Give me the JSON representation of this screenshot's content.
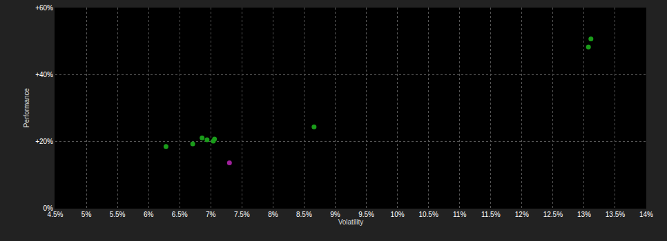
{
  "chart_data": {
    "type": "scatter",
    "x_label": "Volatility",
    "y_label": "Performance",
    "x": [
      6.28,
      6.71,
      6.86,
      6.94,
      7.04,
      7.06,
      8.66,
      7.3,
      13.07,
      13.11
    ],
    "values": [
      18.4,
      19.2,
      21.0,
      20.4,
      20.0,
      20.6,
      24.3,
      13.5,
      48.2,
      50.6
    ],
    "colors": [
      "#1a9c1a",
      "#1a9c1a",
      "#1a9c1a",
      "#1a9c1a",
      "#1a9c1a",
      "#1a9c1a",
      "#1a9c1a",
      "#a0209c",
      "#1a9c1a",
      "#1a9c1a"
    ],
    "xlim": [
      4.5,
      14
    ],
    "xticks": [
      {
        "value": 4.5,
        "label": "4.5%"
      },
      {
        "value": 5,
        "label": "5%"
      },
      {
        "value": 5.5,
        "label": "5.5%"
      },
      {
        "value": 6,
        "label": "6%"
      },
      {
        "value": 6.5,
        "label": "6.5%"
      },
      {
        "value": 7,
        "label": "7%"
      },
      {
        "value": 7.5,
        "label": "7.5%"
      },
      {
        "value": 8,
        "label": "8%"
      },
      {
        "value": 8.5,
        "label": "8.5%"
      },
      {
        "value": 9,
        "label": "9%"
      },
      {
        "value": 9.5,
        "label": "9.5%"
      },
      {
        "value": 10,
        "label": "10%"
      },
      {
        "value": 10.5,
        "label": "10.5%"
      },
      {
        "value": 11,
        "label": "11%"
      },
      {
        "value": 11.5,
        "label": "11.5%"
      },
      {
        "value": 12,
        "label": "12%"
      },
      {
        "value": 12.5,
        "label": "12.5%"
      },
      {
        "value": 13,
        "label": "13%"
      },
      {
        "value": 13.5,
        "label": "13.5%"
      },
      {
        "value": 14,
        "label": "14%"
      }
    ],
    "ylim": [
      0,
      60
    ],
    "yticks": [
      {
        "value": 0,
        "label": "0%"
      },
      {
        "value": 20,
        "label": "+20%"
      },
      {
        "value": 40,
        "label": "+40%"
      },
      {
        "value": 60,
        "label": "+60%"
      }
    ],
    "grid": true,
    "marker": "circle"
  }
}
